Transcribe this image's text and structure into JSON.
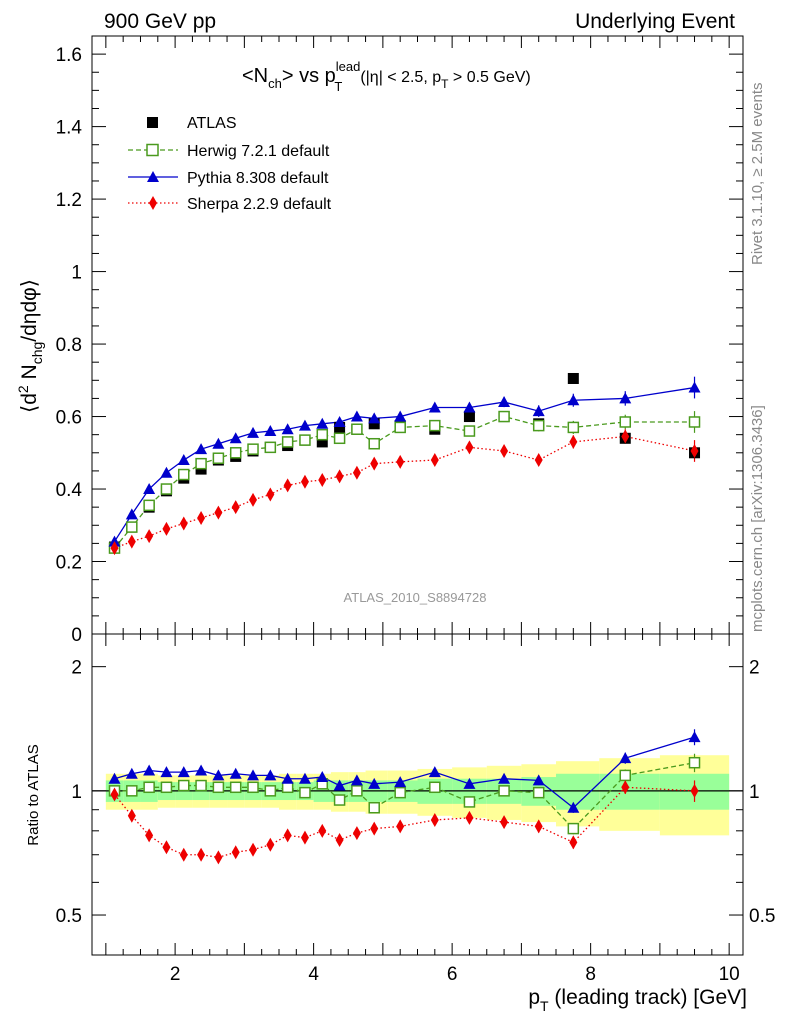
{
  "header": {
    "left": "900 GeV pp",
    "right": "Underlying Event"
  },
  "side_labels": {
    "rivet": "Rivet 3.1.10, ≥ 2.5M events",
    "mcplots": "mcplots.cern.ch [arXiv:1306.3436]"
  },
  "watermark": "ATLAS_2010_S8894728",
  "colors": {
    "atlas": "#000000",
    "herwig": "#4a9a1e",
    "pythia": "#0000cc",
    "sherpa": "#ee0000",
    "band_inner": "#99ff99",
    "band_outer": "#ffff99"
  },
  "chart_data": {
    "type": "scatter",
    "title": {
      "prefix": "<N",
      "prefix_sub": "ch",
      "mid": "> vs p",
      "mid_sup": "lead",
      "mid_sub": "T",
      "cond_a": "(|η| < 2.5, p",
      "cond_sub": "T",
      "cond_b": " > 0.5 GeV)"
    },
    "ylabel_main": {
      "a": "⟨d",
      "sup": "2",
      "b": " N",
      "sub": "chg",
      "c": "/dηdφ⟩"
    },
    "ylabel_ratio": "Ratio to ATLAS",
    "xlabel": {
      "p": "p",
      "sub": "T",
      "rest": " (leading track) [GeV]"
    },
    "xlim": [
      0.8,
      10.2
    ],
    "ylim_main": [
      0,
      1.65
    ],
    "ylim_ratio": [
      0.4,
      2.4
    ],
    "xticks": [
      2,
      4,
      6,
      8,
      10
    ],
    "xtick_labels": [
      "2",
      "4",
      "6",
      "8",
      "10"
    ],
    "yticks_main": [
      0,
      0.2,
      0.4,
      0.6,
      0.8,
      1,
      1.2,
      1.4,
      1.6
    ],
    "ytick_labels_main": [
      "0",
      "0.2",
      "0.4",
      "0.6",
      "0.8",
      "1",
      "1.2",
      "1.4",
      "1.6"
    ],
    "yticks_ratio": [
      0.5,
      1,
      2
    ],
    "ytick_labels_ratio": [
      "0.5",
      "1",
      "2"
    ],
    "legend_position": "top-left",
    "x": [
      1.125,
      1.375,
      1.625,
      1.875,
      2.125,
      2.375,
      2.625,
      2.875,
      3.125,
      3.375,
      3.625,
      3.875,
      4.125,
      4.375,
      4.625,
      4.875,
      5.25,
      5.75,
      6.25,
      6.75,
      7.25,
      7.75,
      8.5,
      9.5
    ],
    "series": [
      {
        "name": "ATLAS",
        "values": [
          0.24,
          0.295,
          0.35,
          0.395,
          0.43,
          0.455,
          0.48,
          0.49,
          0.505,
          0.515,
          0.52,
          0.535,
          0.53,
          0.57,
          0.565,
          0.58,
          0.575,
          0.565,
          0.6,
          0.6,
          0.58,
          0.705,
          0.54,
          0.5
        ],
        "band_inner": [
          0.06,
          0.06,
          0.06,
          0.05,
          0.05,
          0.05,
          0.05,
          0.05,
          0.05,
          0.05,
          0.05,
          0.05,
          0.06,
          0.06,
          0.06,
          0.06,
          0.06,
          0.07,
          0.07,
          0.07,
          0.08,
          0.1,
          0.1,
          0.1
        ],
        "band_outer": [
          0.1,
          0.1,
          0.1,
          0.09,
          0.09,
          0.09,
          0.09,
          0.09,
          0.09,
          0.09,
          0.1,
          0.1,
          0.1,
          0.11,
          0.11,
          0.12,
          0.12,
          0.13,
          0.14,
          0.15,
          0.16,
          0.18,
          0.2,
          0.22
        ]
      },
      {
        "name": "Herwig 7.2.1 default",
        "values": [
          0.237,
          0.295,
          0.355,
          0.4,
          0.44,
          0.47,
          0.485,
          0.5,
          0.51,
          0.515,
          0.53,
          0.535,
          0.55,
          0.54,
          0.565,
          0.525,
          0.57,
          0.575,
          0.56,
          0.6,
          0.575,
          0.57,
          0.585,
          0.585
        ],
        "ratio": [
          1.0,
          1.0,
          1.02,
          1.02,
          1.03,
          1.03,
          1.02,
          1.02,
          1.02,
          1.0,
          1.02,
          0.99,
          1.04,
          0.95,
          1.0,
          0.91,
          0.99,
          1.02,
          0.94,
          1.0,
          0.99,
          0.81,
          1.09,
          1.17
        ],
        "errors": [
          0.005,
          0.005,
          0.005,
          0.005,
          0.005,
          0.006,
          0.006,
          0.006,
          0.007,
          0.007,
          0.008,
          0.008,
          0.009,
          0.009,
          0.01,
          0.01,
          0.01,
          0.012,
          0.013,
          0.014,
          0.016,
          0.018,
          0.02,
          0.03
        ]
      },
      {
        "name": "Pythia 8.308 default",
        "values": [
          0.255,
          0.33,
          0.4,
          0.445,
          0.48,
          0.51,
          0.525,
          0.54,
          0.555,
          0.56,
          0.565,
          0.575,
          0.58,
          0.585,
          0.6,
          0.595,
          0.6,
          0.625,
          0.625,
          0.64,
          0.615,
          0.645,
          0.65,
          0.68
        ],
        "ratio": [
          1.07,
          1.1,
          1.12,
          1.11,
          1.11,
          1.12,
          1.09,
          1.1,
          1.09,
          1.09,
          1.07,
          1.07,
          1.08,
          1.03,
          1.06,
          1.04,
          1.05,
          1.11,
          1.04,
          1.07,
          1.06,
          0.91,
          1.2,
          1.35
        ],
        "errors": [
          0.005,
          0.005,
          0.005,
          0.005,
          0.005,
          0.006,
          0.006,
          0.006,
          0.007,
          0.007,
          0.008,
          0.008,
          0.009,
          0.009,
          0.01,
          0.01,
          0.01,
          0.012,
          0.013,
          0.014,
          0.016,
          0.018,
          0.02,
          0.03
        ]
      },
      {
        "name": "Sherpa 2.2.9 default",
        "values": [
          0.237,
          0.255,
          0.27,
          0.29,
          0.305,
          0.32,
          0.335,
          0.35,
          0.37,
          0.385,
          0.41,
          0.42,
          0.425,
          0.435,
          0.445,
          0.47,
          0.475,
          0.48,
          0.515,
          0.505,
          0.48,
          0.53,
          0.545,
          0.505
        ],
        "ratio": [
          0.98,
          0.87,
          0.78,
          0.73,
          0.7,
          0.7,
          0.69,
          0.71,
          0.72,
          0.74,
          0.78,
          0.77,
          0.8,
          0.76,
          0.79,
          0.81,
          0.82,
          0.85,
          0.86,
          0.84,
          0.82,
          0.75,
          1.02,
          1.0
        ],
        "errors": [
          0.005,
          0.005,
          0.005,
          0.005,
          0.005,
          0.006,
          0.006,
          0.006,
          0.007,
          0.007,
          0.008,
          0.008,
          0.009,
          0.009,
          0.01,
          0.01,
          0.01,
          0.012,
          0.013,
          0.014,
          0.016,
          0.018,
          0.02,
          0.03
        ]
      }
    ]
  }
}
